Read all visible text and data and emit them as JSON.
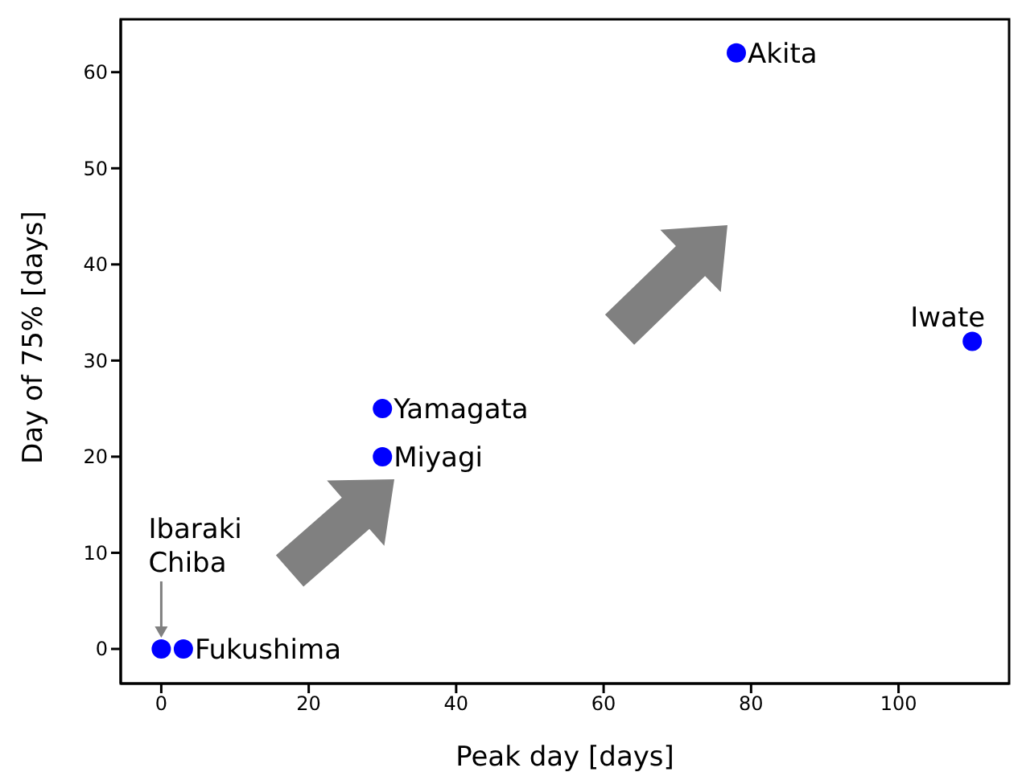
{
  "chart_data": {
    "type": "scatter",
    "xlabel": "Peak day [days]",
    "ylabel": "Day of 75% [days]",
    "x": [
      0,
      3,
      30,
      30,
      78,
      110
    ],
    "series": [
      {
        "color": "#0000ff",
        "values": [
          0,
          0,
          20,
          25,
          62,
          32
        ]
      }
    ],
    "xlim": [
      -5.5,
      115
    ],
    "ylim": [
      -3.6,
      65.5
    ],
    "xticks": [
      0,
      20,
      40,
      60,
      80,
      100
    ],
    "yticks": [
      0,
      10,
      20,
      30,
      40,
      50,
      60
    ],
    "grid": false,
    "marker": "circle",
    "legend": false,
    "annotations": [
      {
        "text": "Ibaraki\nChiba",
        "x": 0,
        "y": 0
      },
      {
        "text": "Fukushima",
        "x": 3,
        "y": 0
      },
      {
        "text": "Miyagi",
        "x": 30,
        "y": 20
      },
      {
        "text": "Yamagata",
        "x": 30,
        "y": 25
      },
      {
        "text": "Akita",
        "x": 78,
        "y": 62
      },
      {
        "text": "Iwate",
        "x": 110,
        "y": 32
      }
    ]
  }
}
